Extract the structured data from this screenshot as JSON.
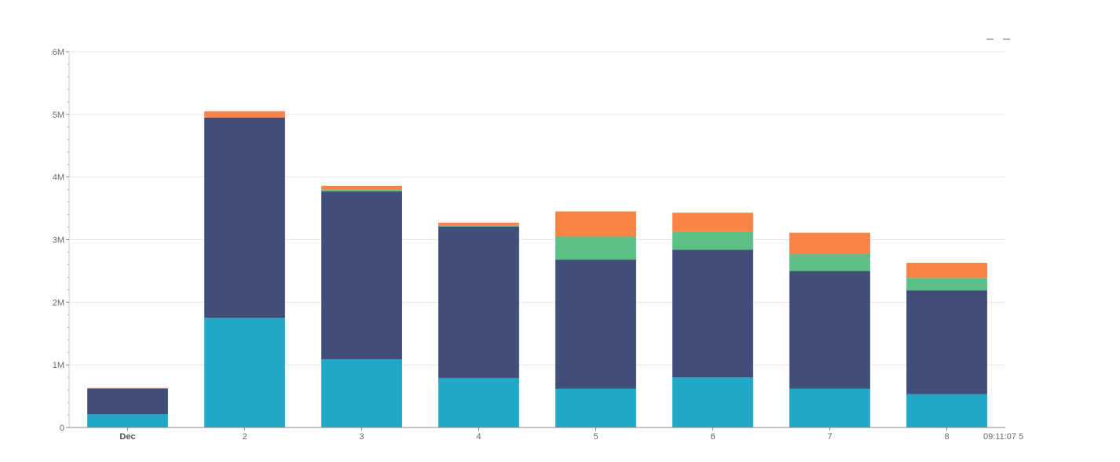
{
  "chart_data": {
    "type": "bar",
    "stacked": true,
    "categories": [
      "Dec",
      "2",
      "3",
      "4",
      "5",
      "6",
      "7",
      "8"
    ],
    "series": [
      {
        "color": "#21a7c8",
        "values": [
          210000,
          1750000,
          1090000,
          790000,
          620000,
          800000,
          620000,
          530000
        ]
      },
      {
        "color": "#424e7a",
        "values": [
          410000,
          3200000,
          2680000,
          2420000,
          2060000,
          2040000,
          1880000,
          1660000
        ]
      },
      {
        "color": "#5bbf87",
        "values": [
          0,
          0,
          30000,
          20000,
          370000,
          280000,
          280000,
          200000
        ]
      },
      {
        "color": "#fc8346",
        "values": [
          10000,
          100000,
          60000,
          40000,
          400000,
          310000,
          330000,
          240000
        ]
      }
    ],
    "y_ticks": [
      "0",
      "1M",
      "2M",
      "3M",
      "4M",
      "5M",
      "6M"
    ],
    "ylim": [
      0,
      6000000
    ],
    "grid": true,
    "x_end_label": "09:11:07 5"
  }
}
